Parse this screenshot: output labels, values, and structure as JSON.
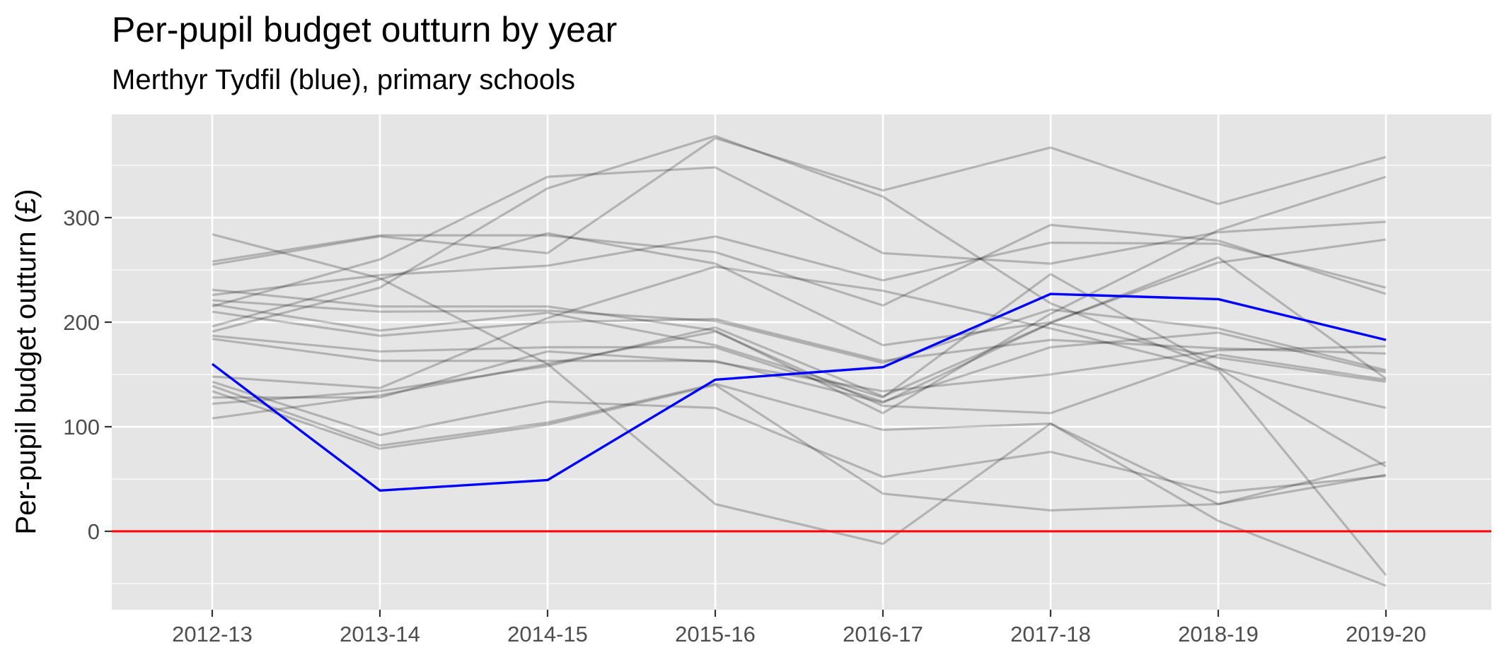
{
  "chart_data": {
    "type": "line",
    "title": "Per-pupil budget outturn by year",
    "subtitle": "Merthyr Tydfil (blue), primary schools",
    "xlabel": "",
    "ylabel": "Per-pupil budget outturn (£)",
    "categories": [
      "2012-13",
      "2013-14",
      "2014-15",
      "2015-16",
      "2016-17",
      "2017-18",
      "2018-19",
      "2019-20"
    ],
    "ylim": [
      -75,
      400
    ],
    "yticks": [
      0,
      100,
      200,
      300
    ],
    "grid": true,
    "legend": "none",
    "reference_line": {
      "value": 0,
      "color": "#ff0000"
    },
    "colors": {
      "panel": "#e5e5e5",
      "grid": "#ffffff",
      "other": "#000000",
      "highlight": "#0000ff"
    },
    "highlight": {
      "values": [
        160,
        39,
        49,
        145,
        157,
        227,
        222,
        183
      ]
    },
    "others": [
      {
        "values": [
          284,
          242,
          160,
          26,
          -12,
          103,
          26,
          54
        ]
      },
      {
        "values": [
          258,
          283,
          283,
          267,
          216,
          293,
          278,
          227
        ]
      },
      {
        "values": [
          255,
          282,
          266,
          376,
          326,
          367,
          313,
          358
        ]
      },
      {
        "values": [
          231,
          215,
          215,
          192,
          113,
          208,
          288,
          339
        ]
      },
      {
        "values": [
          226,
          245,
          254,
          282,
          240,
          276,
          275,
          233
        ]
      },
      {
        "values": [
          221,
          210,
          211,
          201,
          161,
          212,
          194,
          154
        ]
      },
      {
        "values": [
          217,
          192,
          209,
          178,
          128,
          246,
          156,
          62
        ]
      },
      {
        "values": [
          215,
          260,
          339,
          348,
          266,
          256,
          286,
          296
        ]
      },
      {
        "values": [
          210,
          187,
          200,
          203,
          163,
          183,
          175,
          170
        ]
      },
      {
        "values": [
          196,
          241,
          285,
          256,
          178,
          200,
          257,
          279
        ]
      },
      {
        "values": [
          191,
          233,
          328,
          378,
          320,
          218,
          156,
          118
        ]
      },
      {
        "values": [
          187,
          172,
          176,
          176,
          124,
          176,
          190,
          152
        ]
      },
      {
        "values": [
          184,
          163,
          163,
          163,
          123,
          199,
          166,
          143
        ]
      },
      {
        "values": [
          148,
          137,
          204,
          253,
          230,
          194,
          154,
          -42
        ]
      },
      {
        "values": [
          143,
          92,
          124,
          118,
          52,
          76,
          37,
          53
        ]
      },
      {
        "values": [
          139,
          82,
          104,
          141,
          97,
          103,
          10,
          -52
        ]
      },
      {
        "values": [
          134,
          79,
          102,
          140,
          36,
          20,
          26,
          66
        ]
      },
      {
        "values": [
          128,
          128,
          172,
          162,
          134,
          150,
          173,
          177
        ]
      },
      {
        "values": [
          122,
          134,
          158,
          195,
          129,
          199,
          262,
          146
        ]
      },
      {
        "values": [
          108,
          130,
          160,
          191,
          120,
          113,
          169,
          145
        ]
      }
    ]
  }
}
